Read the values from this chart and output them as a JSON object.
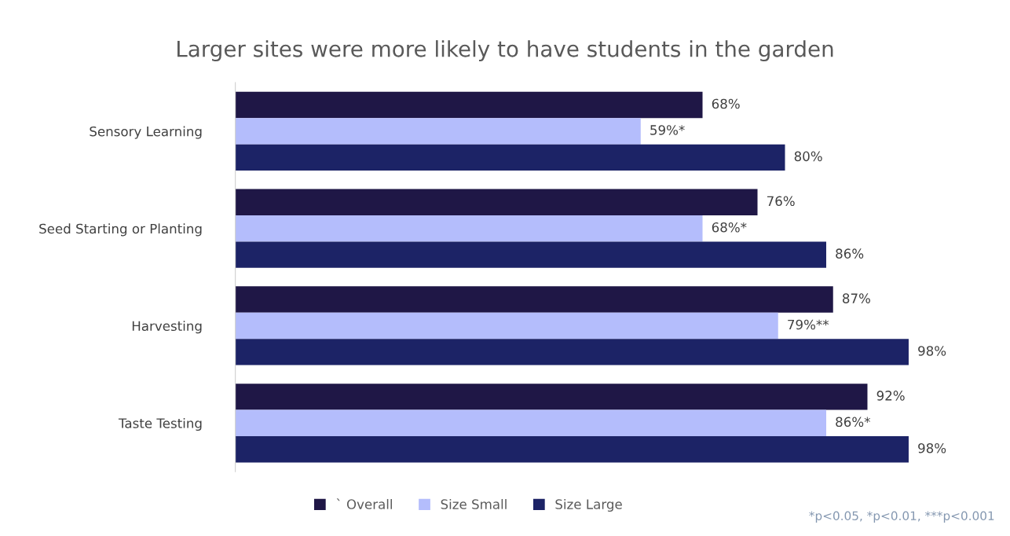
{
  "chart_data": {
    "type": "bar",
    "orientation": "horizontal",
    "title": "Larger sites were more likely to have students in the garden",
    "categories": [
      "Sensory Learning",
      "Seed Starting or Planting",
      "Harvesting",
      "Taste Testing"
    ],
    "series": [
      {
        "name": "` Overall",
        "color": "#1f1746",
        "values": [
          68,
          76,
          87,
          92
        ],
        "value_labels": [
          "68%",
          "76%",
          "87%",
          "92%"
        ]
      },
      {
        "name": "Size Small",
        "color": "#b4bdfc",
        "values": [
          59,
          68,
          79,
          86
        ],
        "value_labels": [
          "59%*",
          "68%*",
          "79%**",
          "86%*"
        ]
      },
      {
        "name": "Size Large",
        "color": "#1c2366",
        "values": [
          80,
          86,
          98,
          98
        ],
        "value_labels": [
          "80%",
          "86%",
          "98%",
          "98%"
        ]
      }
    ],
    "legend": "bottom",
    "grid": false,
    "annotations": [
      "*p<0.05, *p<0.01, ***p<0.001"
    ]
  }
}
